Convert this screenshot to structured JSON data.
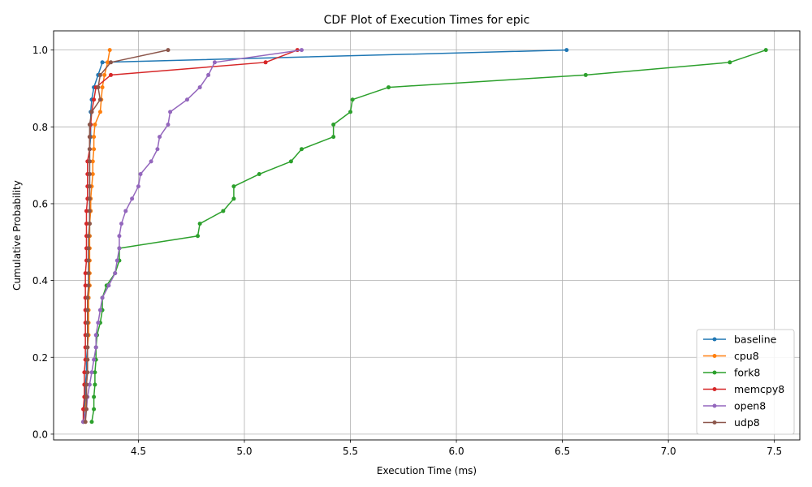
{
  "chart_data": {
    "type": "line",
    "title": "CDF Plot of Execution Times for epic",
    "xlabel": "Execution Time (ms)",
    "ylabel": "Cumulative Probability",
    "xlim": [
      4.1,
      7.62
    ],
    "ylim": [
      -0.015,
      1.05
    ],
    "x_ticks": [
      4.5,
      5.0,
      5.5,
      6.0,
      6.5,
      7.0,
      7.5
    ],
    "x_tick_labels": [
      "4.5",
      "5.0",
      "5.5",
      "6.0",
      "6.5",
      "7.0",
      "7.5"
    ],
    "y_ticks": [
      0.0,
      0.2,
      0.4,
      0.6,
      0.8,
      1.0
    ],
    "y_tick_labels": [
      "0.0",
      "0.2",
      "0.4",
      "0.6",
      "0.8",
      "1.0"
    ],
    "grid": true,
    "legend_position": "bottom-right",
    "y": [
      0.032,
      0.065,
      0.097,
      0.129,
      0.161,
      0.194,
      0.226,
      0.258,
      0.29,
      0.323,
      0.355,
      0.387,
      0.419,
      0.452,
      0.484,
      0.516,
      0.548,
      0.581,
      0.613,
      0.645,
      0.677,
      0.71,
      0.742,
      0.774,
      0.806,
      0.839,
      0.871,
      0.903,
      0.935,
      0.968,
      1.0
    ],
    "series": [
      {
        "name": "baseline",
        "color": "#1f77b4",
        "x": [
          4.24,
          4.245,
          4.25,
          4.25,
          4.255,
          4.255,
          4.26,
          4.26,
          4.26,
          4.26,
          4.265,
          4.265,
          4.265,
          4.265,
          4.265,
          4.27,
          4.27,
          4.27,
          4.27,
          4.27,
          4.27,
          4.27,
          4.27,
          4.275,
          4.275,
          4.275,
          4.28,
          4.29,
          4.31,
          4.33,
          6.52
        ]
      },
      {
        "name": "cpu8",
        "color": "#ff7f0e",
        "x": [
          4.25,
          4.25,
          4.255,
          4.255,
          4.26,
          4.26,
          4.26,
          4.265,
          4.265,
          4.265,
          4.265,
          4.27,
          4.27,
          4.27,
          4.27,
          4.27,
          4.27,
          4.275,
          4.275,
          4.28,
          4.285,
          4.285,
          4.29,
          4.29,
          4.295,
          4.32,
          4.325,
          4.33,
          4.34,
          4.355,
          4.365
        ]
      },
      {
        "name": "fork8",
        "color": "#2ca02c",
        "x": [
          4.28,
          4.29,
          4.29,
          4.295,
          4.295,
          4.3,
          4.3,
          4.305,
          4.32,
          4.33,
          4.33,
          4.35,
          4.39,
          4.41,
          4.41,
          4.78,
          4.79,
          4.9,
          4.95,
          4.95,
          5.07,
          5.22,
          5.27,
          5.42,
          5.42,
          5.5,
          5.51,
          5.68,
          6.61,
          7.29,
          7.46
        ]
      },
      {
        "name": "memcpy8",
        "color": "#d62728",
        "x": [
          4.24,
          4.24,
          4.245,
          4.245,
          4.245,
          4.25,
          4.25,
          4.25,
          4.25,
          4.25,
          4.25,
          4.25,
          4.25,
          4.255,
          4.255,
          4.255,
          4.255,
          4.255,
          4.26,
          4.26,
          4.26,
          4.26,
          4.27,
          4.27,
          4.275,
          4.28,
          4.29,
          4.3,
          4.37,
          5.1,
          5.25
        ]
      },
      {
        "name": "open8",
        "color": "#9467bd",
        "x": [
          4.24,
          4.255,
          4.26,
          4.27,
          4.28,
          4.29,
          4.3,
          4.3,
          4.31,
          4.32,
          4.33,
          4.36,
          4.39,
          4.4,
          4.41,
          4.41,
          4.42,
          4.44,
          4.47,
          4.5,
          4.51,
          4.56,
          4.59,
          4.6,
          4.64,
          4.65,
          4.73,
          4.79,
          4.83,
          4.86,
          5.27
        ]
      },
      {
        "name": "udp8",
        "color": "#8c564b",
        "x": [
          4.25,
          4.255,
          4.255,
          4.255,
          4.26,
          4.26,
          4.26,
          4.26,
          4.26,
          4.26,
          4.26,
          4.265,
          4.265,
          4.265,
          4.265,
          4.265,
          4.27,
          4.27,
          4.27,
          4.27,
          4.27,
          4.27,
          4.27,
          4.27,
          4.27,
          4.28,
          4.32,
          4.31,
          4.32,
          4.37,
          4.64
        ]
      }
    ]
  }
}
